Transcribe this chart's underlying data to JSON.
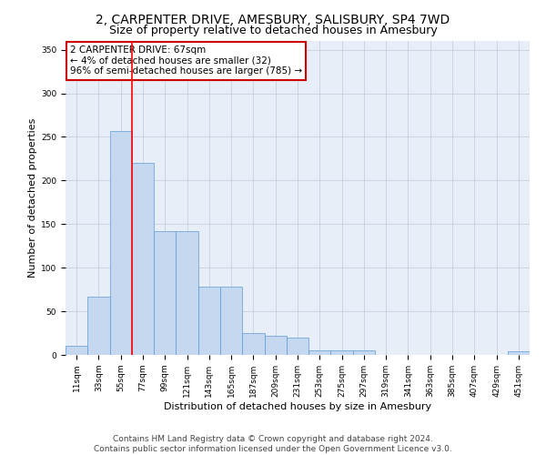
{
  "title": "2, CARPENTER DRIVE, AMESBURY, SALISBURY, SP4 7WD",
  "subtitle": "Size of property relative to detached houses in Amesbury",
  "xlabel": "Distribution of detached houses by size in Amesbury",
  "ylabel": "Number of detached properties",
  "categories": [
    "11sqm",
    "33sqm",
    "55sqm",
    "77sqm",
    "99sqm",
    "121sqm",
    "143sqm",
    "165sqm",
    "187sqm",
    "209sqm",
    "231sqm",
    "253sqm",
    "275sqm",
    "297sqm",
    "319sqm",
    "341sqm",
    "363sqm",
    "385sqm",
    "407sqm",
    "429sqm",
    "451sqm"
  ],
  "values": [
    10,
    67,
    257,
    220,
    142,
    142,
    78,
    78,
    25,
    22,
    20,
    5,
    5,
    5,
    0,
    0,
    0,
    0,
    0,
    0,
    4
  ],
  "bar_color": "#c5d8f0",
  "bar_edge_color": "#5b9bd5",
  "red_line_x": 2.5,
  "annotation_box_text": "2 CARPENTER DRIVE: 67sqm\n← 4% of detached houses are smaller (32)\n96% of semi-detached houses are larger (785) →",
  "annotation_box_color": "#ffffff",
  "annotation_box_edge_color": "#cc0000",
  "footer_line1": "Contains HM Land Registry data © Crown copyright and database right 2024.",
  "footer_line2": "Contains public sector information licensed under the Open Government Licence v3.0.",
  "bg_color": "#ffffff",
  "plot_bg_color": "#e8eef7",
  "grid_color": "#c0c8d8",
  "ylim": [
    0,
    360
  ],
  "yticks": [
    0,
    50,
    100,
    150,
    200,
    250,
    300,
    350
  ],
  "title_fontsize": 10,
  "subtitle_fontsize": 9,
  "xlabel_fontsize": 8,
  "ylabel_fontsize": 8,
  "tick_fontsize": 6.5,
  "annotation_fontsize": 7.5,
  "footer_fontsize": 6.5
}
